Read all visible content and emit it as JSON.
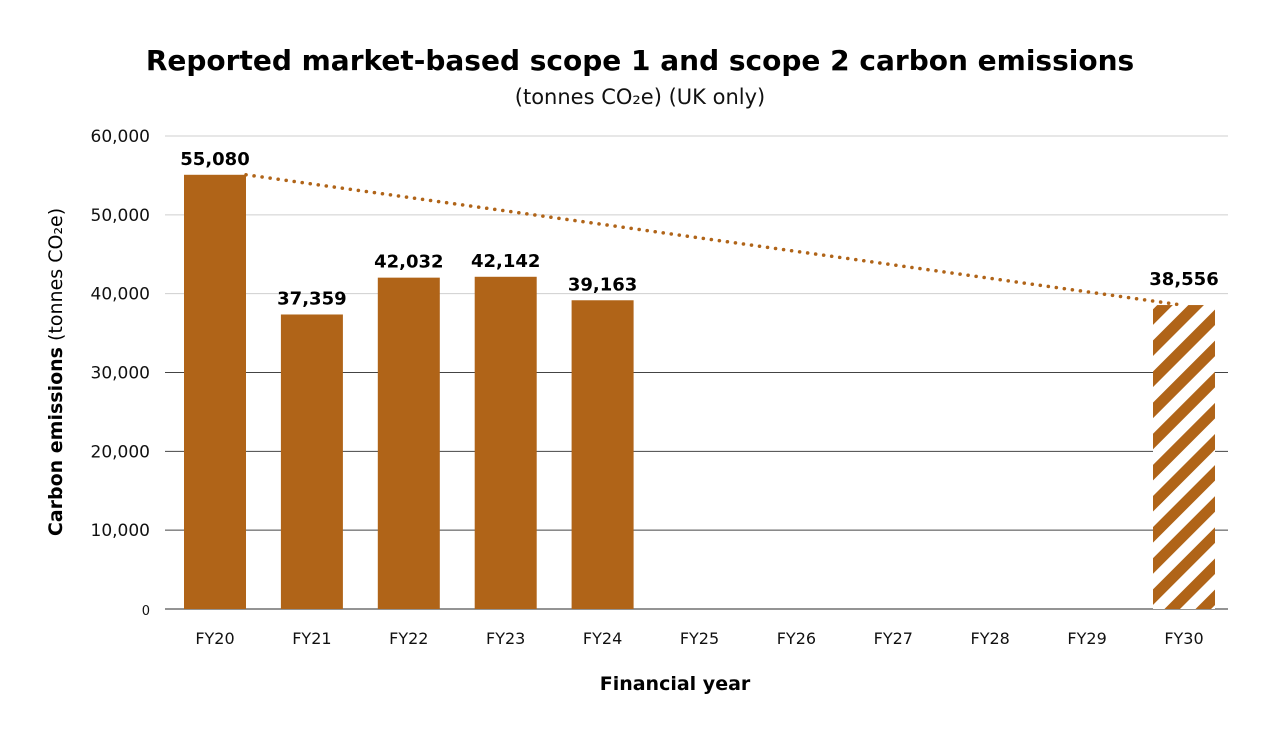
{
  "chart_data": {
    "type": "bar",
    "title": "Reported market-based scope 1 and scope 2 carbon emissions",
    "subtitle": "(tonnes CO₂e) (UK only)",
    "xlabel": "Financial year",
    "ylabel_bold": "Carbon emissions",
    "ylabel_rest": " (tonnes CO₂e)",
    "ylim": [
      0,
      60000
    ],
    "yticks": [
      0,
      10000,
      20000,
      30000,
      40000,
      50000,
      60000
    ],
    "ytick_labels": [
      "0",
      "10,000",
      "20,000",
      "30,000",
      "40,000",
      "50,000",
      "60,000"
    ],
    "categories": [
      "FY20",
      "FY21",
      "FY22",
      "FY23",
      "FY24",
      "FY25",
      "FY26",
      "FY27",
      "FY28",
      "FY29",
      "FY30"
    ],
    "values": [
      55080,
      37359,
      42032,
      42142,
      39163,
      null,
      null,
      null,
      null,
      null,
      38556
    ],
    "value_labels": [
      "55,080",
      "37,359",
      "42,032",
      "42,142",
      "39,163",
      "",
      "",
      "",
      "",
      "",
      "38,556"
    ],
    "target_category": "FY30",
    "trend_line": {
      "from": "FY20",
      "to": "FY30",
      "from_value": 55080,
      "to_value": 38556
    },
    "colors": {
      "bar": "#b06418",
      "grid": "#cfcfcf",
      "axis": "#555555",
      "trend": "#b06418"
    }
  }
}
